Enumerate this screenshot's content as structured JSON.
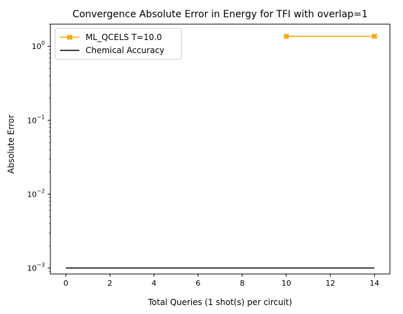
{
  "chart_data": {
    "type": "line",
    "title": "Convergence Absolute Error in Energy for TFI with overlap=1",
    "xlabel": "Total Queries (1 shot(s) per circuit)",
    "ylabel": "Absolute Error",
    "yscale": "log",
    "xlim": [
      -0.7,
      14.7
    ],
    "ylim": [
      0.00083,
      2.0
    ],
    "xticks": [
      0,
      2,
      4,
      6,
      8,
      10,
      12,
      14
    ],
    "yticks": [
      {
        "value": 0.001,
        "base": "10",
        "exp": "−3"
      },
      {
        "value": 0.01,
        "base": "10",
        "exp": "−2"
      },
      {
        "value": 0.1,
        "base": "10",
        "exp": "−1"
      },
      {
        "value": 1,
        "base": "10",
        "exp": "0"
      }
    ],
    "grid": false,
    "legend_position": "top-left",
    "series": [
      {
        "name": "ML_QCELS T=10.0",
        "color": "#ffa500",
        "marker": "X",
        "x": [
          10,
          14
        ],
        "y": [
          1.37,
          1.37
        ]
      },
      {
        "name": "Chemical Accuracy",
        "color": "#000000",
        "marker": "none",
        "x": [
          0,
          14
        ],
        "y": [
          0.001,
          0.001
        ]
      }
    ]
  }
}
